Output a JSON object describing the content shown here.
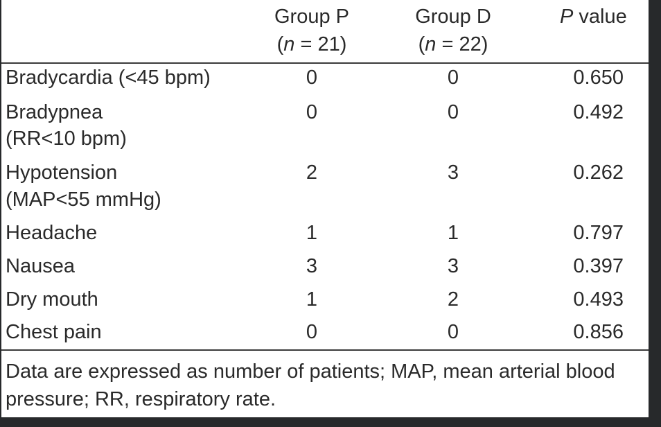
{
  "table": {
    "headers": {
      "group_p_name": "Group P",
      "group_p_n_italic": "n",
      "group_p_n_rest": " = 21)",
      "group_d_name": "Group D",
      "group_d_n_italic": "n",
      "group_d_n_rest": " = 22)",
      "p_value_italic": "P",
      "p_value_rest": " value"
    },
    "rows": [
      {
        "label_1": "Bradycardia (<45 bpm)",
        "label_2": "",
        "group_p": "0",
        "group_d": "0",
        "p_value": "0.650"
      },
      {
        "label_1": "Bradypnea",
        "label_2": "(RR<10 bpm)",
        "group_p": "0",
        "group_d": "0",
        "p_value": "0.492"
      },
      {
        "label_1": "Hypotension",
        "label_2": "(MAP<55 mmHg)",
        "group_p": "2",
        "group_d": "3",
        "p_value": "0.262"
      },
      {
        "label_1": "Headache",
        "label_2": "",
        "group_p": "1",
        "group_d": "1",
        "p_value": "0.797"
      },
      {
        "label_1": "Nausea",
        "label_2": "",
        "group_p": "3",
        "group_d": "3",
        "p_value": "0.397"
      },
      {
        "label_1": "Dry mouth",
        "label_2": "",
        "group_p": "1",
        "group_d": "2",
        "p_value": "0.493"
      },
      {
        "label_1": "Chest pain",
        "label_2": "",
        "group_p": "0",
        "group_d": "0",
        "p_value": "0.856"
      }
    ],
    "footnote": "Data are expressed as number of patients; MAP, mean arterial blood pressure; RR, respiratory rate."
  }
}
